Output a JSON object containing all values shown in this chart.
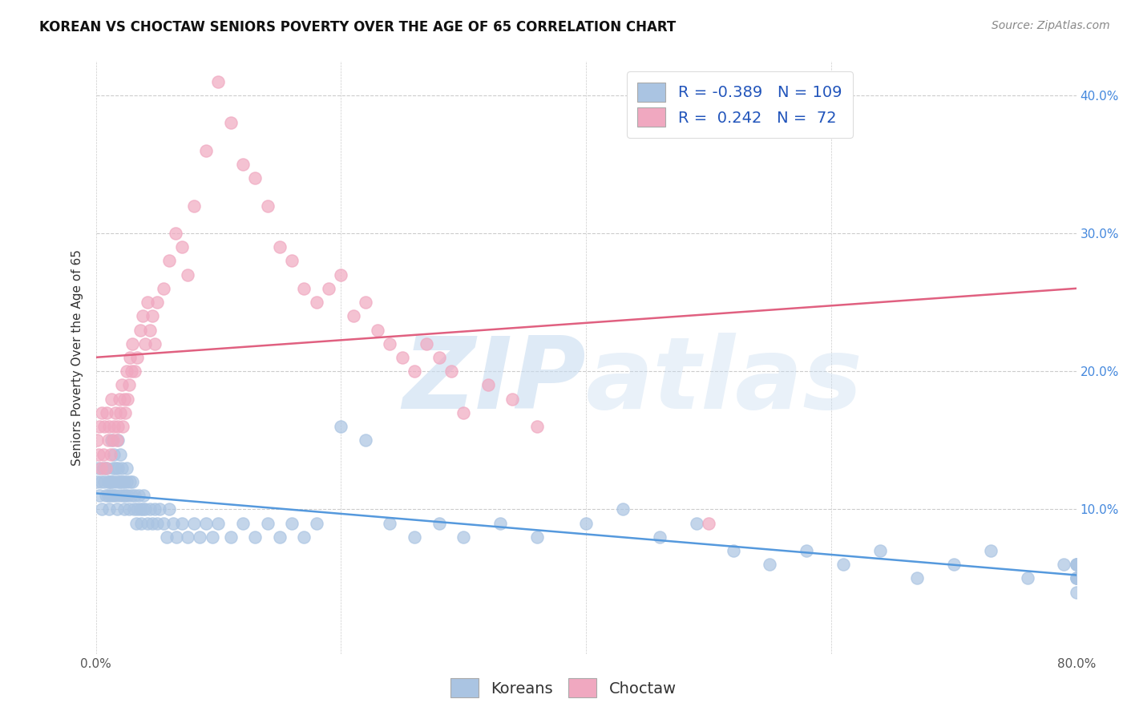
{
  "title": "KOREAN VS CHOCTAW SENIORS POVERTY OVER THE AGE OF 65 CORRELATION CHART",
  "source": "Source: ZipAtlas.com",
  "ylabel": "Seniors Poverty Over the Age of 65",
  "watermark_zip": "ZIP",
  "watermark_atlas": "atlas",
  "xlim": [
    0.0,
    0.8
  ],
  "ylim": [
    -0.005,
    0.425
  ],
  "xticks": [
    0.0,
    0.2,
    0.4,
    0.6,
    0.8
  ],
  "yticks": [
    0.1,
    0.2,
    0.3,
    0.4
  ],
  "xtick_labels": [
    "0.0%",
    "",
    "",
    "",
    "80.0%"
  ],
  "ytick_labels_right": [
    "10.0%",
    "20.0%",
    "30.0%",
    "40.0%"
  ],
  "korean_color": "#aac4e2",
  "choctaw_color": "#f0a8c0",
  "korean_line_color": "#5599dd",
  "choctaw_line_color": "#e06080",
  "korean_R": -0.389,
  "korean_N": 109,
  "choctaw_R": 0.242,
  "choctaw_N": 72,
  "background_color": "#ffffff",
  "grid_color": "#cccccc",
  "title_fontsize": 12,
  "axis_fontsize": 11,
  "tick_fontsize": 11,
  "legend_fontsize": 14,
  "source_fontsize": 10,
  "korean_x": [
    0.001,
    0.002,
    0.003,
    0.004,
    0.005,
    0.006,
    0.007,
    0.008,
    0.009,
    0.01,
    0.01,
    0.011,
    0.011,
    0.012,
    0.012,
    0.013,
    0.013,
    0.014,
    0.014,
    0.015,
    0.015,
    0.016,
    0.016,
    0.017,
    0.017,
    0.018,
    0.018,
    0.019,
    0.019,
    0.02,
    0.02,
    0.021,
    0.022,
    0.022,
    0.023,
    0.023,
    0.024,
    0.025,
    0.025,
    0.026,
    0.027,
    0.028,
    0.029,
    0.03,
    0.031,
    0.032,
    0.033,
    0.034,
    0.035,
    0.036,
    0.037,
    0.038,
    0.039,
    0.04,
    0.042,
    0.044,
    0.046,
    0.048,
    0.05,
    0.052,
    0.055,
    0.058,
    0.06,
    0.063,
    0.066,
    0.07,
    0.075,
    0.08,
    0.085,
    0.09,
    0.095,
    0.1,
    0.11,
    0.12,
    0.13,
    0.14,
    0.15,
    0.16,
    0.17,
    0.18,
    0.2,
    0.22,
    0.24,
    0.26,
    0.28,
    0.3,
    0.33,
    0.36,
    0.4,
    0.43,
    0.46,
    0.49,
    0.52,
    0.55,
    0.58,
    0.61,
    0.64,
    0.67,
    0.7,
    0.73,
    0.76,
    0.79,
    0.8,
    0.8,
    0.8,
    0.8,
    0.8,
    0.8,
    0.8
  ],
  "korean_y": [
    0.12,
    0.13,
    0.11,
    0.12,
    0.1,
    0.13,
    0.12,
    0.11,
    0.13,
    0.12,
    0.11,
    0.12,
    0.1,
    0.12,
    0.11,
    0.15,
    0.12,
    0.13,
    0.11,
    0.14,
    0.12,
    0.13,
    0.11,
    0.12,
    0.1,
    0.15,
    0.13,
    0.12,
    0.11,
    0.14,
    0.12,
    0.13,
    0.12,
    0.11,
    0.1,
    0.12,
    0.11,
    0.13,
    0.12,
    0.11,
    0.1,
    0.12,
    0.11,
    0.12,
    0.1,
    0.11,
    0.09,
    0.1,
    0.11,
    0.1,
    0.09,
    0.1,
    0.11,
    0.1,
    0.09,
    0.1,
    0.09,
    0.1,
    0.09,
    0.1,
    0.09,
    0.08,
    0.1,
    0.09,
    0.08,
    0.09,
    0.08,
    0.09,
    0.08,
    0.09,
    0.08,
    0.09,
    0.08,
    0.09,
    0.08,
    0.09,
    0.08,
    0.09,
    0.08,
    0.09,
    0.16,
    0.15,
    0.09,
    0.08,
    0.09,
    0.08,
    0.09,
    0.08,
    0.09,
    0.1,
    0.08,
    0.09,
    0.07,
    0.06,
    0.07,
    0.06,
    0.07,
    0.05,
    0.06,
    0.07,
    0.05,
    0.06,
    0.04,
    0.05,
    0.06,
    0.05,
    0.06,
    0.05,
    0.06
  ],
  "choctaw_x": [
    0.001,
    0.002,
    0.003,
    0.004,
    0.005,
    0.006,
    0.007,
    0.008,
    0.009,
    0.01,
    0.011,
    0.012,
    0.013,
    0.014,
    0.015,
    0.016,
    0.017,
    0.018,
    0.019,
    0.02,
    0.021,
    0.022,
    0.023,
    0.024,
    0.025,
    0.026,
    0.027,
    0.028,
    0.029,
    0.03,
    0.032,
    0.034,
    0.036,
    0.038,
    0.04,
    0.042,
    0.044,
    0.046,
    0.048,
    0.05,
    0.055,
    0.06,
    0.065,
    0.07,
    0.075,
    0.08,
    0.09,
    0.1,
    0.11,
    0.12,
    0.13,
    0.14,
    0.15,
    0.16,
    0.17,
    0.18,
    0.19,
    0.2,
    0.21,
    0.22,
    0.23,
    0.24,
    0.25,
    0.26,
    0.27,
    0.28,
    0.29,
    0.3,
    0.32,
    0.34,
    0.36,
    0.5
  ],
  "choctaw_y": [
    0.15,
    0.14,
    0.16,
    0.13,
    0.17,
    0.14,
    0.16,
    0.13,
    0.17,
    0.15,
    0.16,
    0.14,
    0.18,
    0.15,
    0.16,
    0.17,
    0.15,
    0.16,
    0.18,
    0.17,
    0.19,
    0.16,
    0.18,
    0.17,
    0.2,
    0.18,
    0.19,
    0.21,
    0.2,
    0.22,
    0.2,
    0.21,
    0.23,
    0.24,
    0.22,
    0.25,
    0.23,
    0.24,
    0.22,
    0.25,
    0.26,
    0.28,
    0.3,
    0.29,
    0.27,
    0.32,
    0.36,
    0.41,
    0.38,
    0.35,
    0.34,
    0.32,
    0.29,
    0.28,
    0.26,
    0.25,
    0.26,
    0.27,
    0.24,
    0.25,
    0.23,
    0.22,
    0.21,
    0.2,
    0.22,
    0.21,
    0.2,
    0.17,
    0.19,
    0.18,
    0.16,
    0.09
  ]
}
